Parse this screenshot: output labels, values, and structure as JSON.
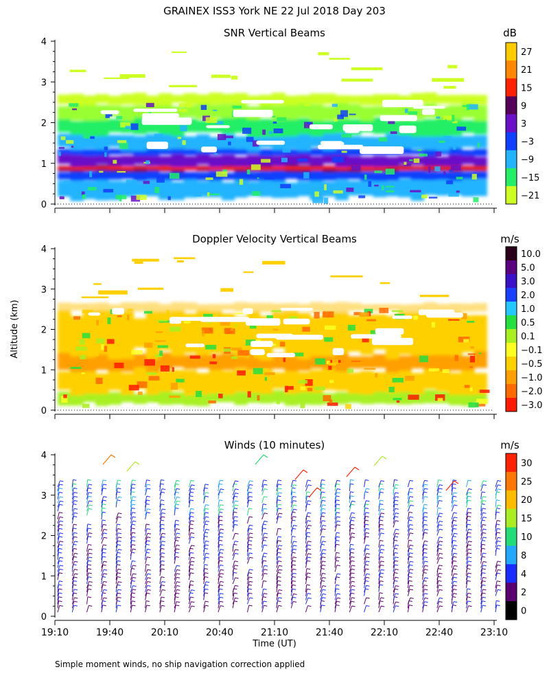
{
  "figure": {
    "title": "GRAINEX ISS3 York NE  22 Jul 2018 Day 203",
    "y_label": "Altitude (km)",
    "x_label": "Time (UT)",
    "footnote": "Simple moment winds, no ship navigation correction applied"
  },
  "chart_data": [
    {
      "type": "heatmap",
      "title": "SNR Vertical Beams",
      "colorbar_unit": "dB",
      "colorbar_labels": [
        "27",
        "21",
        "15",
        "9",
        "3",
        "−3",
        "−9",
        "−15",
        "−21"
      ],
      "colorbar_colors": [
        "#ffcc00",
        "#ff8800",
        "#ff2200",
        "#55005a",
        "#6a10c8",
        "#1040ff",
        "#22b4ff",
        "#22ee66",
        "#ccff22"
      ],
      "x_range": [
        "19:10",
        "23:10"
      ],
      "ylim": [
        0,
        4
      ],
      "y_ticks": [
        "0",
        "1",
        "2",
        "3",
        "4"
      ],
      "layers": [
        {
          "from_km": 0.15,
          "to_km": 0.6,
          "color": "#22b4ff"
        },
        {
          "from_km": 0.6,
          "to_km": 0.8,
          "color": "#1040ff"
        },
        {
          "from_km": 0.8,
          "to_km": 0.95,
          "color": "#55005a"
        },
        {
          "from_km": 0.85,
          "to_km": 0.92,
          "color": "#ff2200"
        },
        {
          "from_km": 0.95,
          "to_km": 1.2,
          "color": "#6a10c8"
        },
        {
          "from_km": 1.2,
          "to_km": 1.35,
          "color": "#1040ff"
        },
        {
          "from_km": 1.35,
          "to_km": 1.7,
          "color": "#22b4ff"
        },
        {
          "from_km": 1.7,
          "to_km": 2.1,
          "color": "#22ee66"
        },
        {
          "from_km": 2.1,
          "to_km": 2.45,
          "color": "#99ff33"
        },
        {
          "from_km": 2.45,
          "to_km": 2.7,
          "color": "#ccff22"
        }
      ]
    },
    {
      "type": "heatmap",
      "title": "Doppler Velocity Vertical Beams",
      "colorbar_unit": "m/s",
      "colorbar_labels": [
        "10.0",
        "5.0",
        "3.0",
        "2.0",
        "1.0",
        "0.5",
        "0.1",
        "−0.1",
        "−0.5",
        "−1.0",
        "−2.0",
        "−3.0"
      ],
      "colorbar_colors": [
        "#2a001a",
        "#5a0080",
        "#3a10c8",
        "#1a40ff",
        "#22c8ff",
        "#22e040",
        "#a8f020",
        "#ffff22",
        "#ffd000",
        "#ffa000",
        "#ff6a00",
        "#ff1a00"
      ],
      "x_range": [
        "19:10",
        "23:10"
      ],
      "ylim": [
        0,
        4
      ],
      "y_ticks": [
        "0",
        "1",
        "2",
        "3",
        "4"
      ],
      "layers": [
        {
          "from_km": 0.15,
          "to_km": 0.45,
          "color": "#a8f020"
        },
        {
          "from_km": 0.45,
          "to_km": 1.0,
          "color": "#ffd000"
        },
        {
          "from_km": 1.0,
          "to_km": 1.4,
          "color": "#ffa000"
        },
        {
          "from_km": 1.4,
          "to_km": 2.45,
          "color": "#ffd000"
        },
        {
          "from_km": 2.45,
          "to_km": 2.65,
          "color": "#ffe080"
        }
      ]
    },
    {
      "type": "scatter",
      "title": "Winds (10 minutes)",
      "colorbar_unit": "m/s",
      "colorbar_labels": [
        "30",
        "25",
        "20",
        "15",
        "10",
        "8",
        "4",
        "2",
        "0"
      ],
      "colorbar_colors": [
        "#ff2200",
        "#ff7700",
        "#ffbb00",
        "#aaee22",
        "#22dd77",
        "#22a8ff",
        "#1a2cff",
        "#5a0070",
        "#000000"
      ],
      "x_ticks": [
        "19:10",
        "19:40",
        "20:10",
        "20:40",
        "21:10",
        "21:40",
        "22:10",
        "22:40",
        "23:10"
      ],
      "y_ticks": [
        "0",
        "1",
        "2",
        "3",
        "4"
      ],
      "ylim": [
        0,
        4
      ],
      "barb_range_km": [
        0.1,
        3.3
      ]
    }
  ]
}
